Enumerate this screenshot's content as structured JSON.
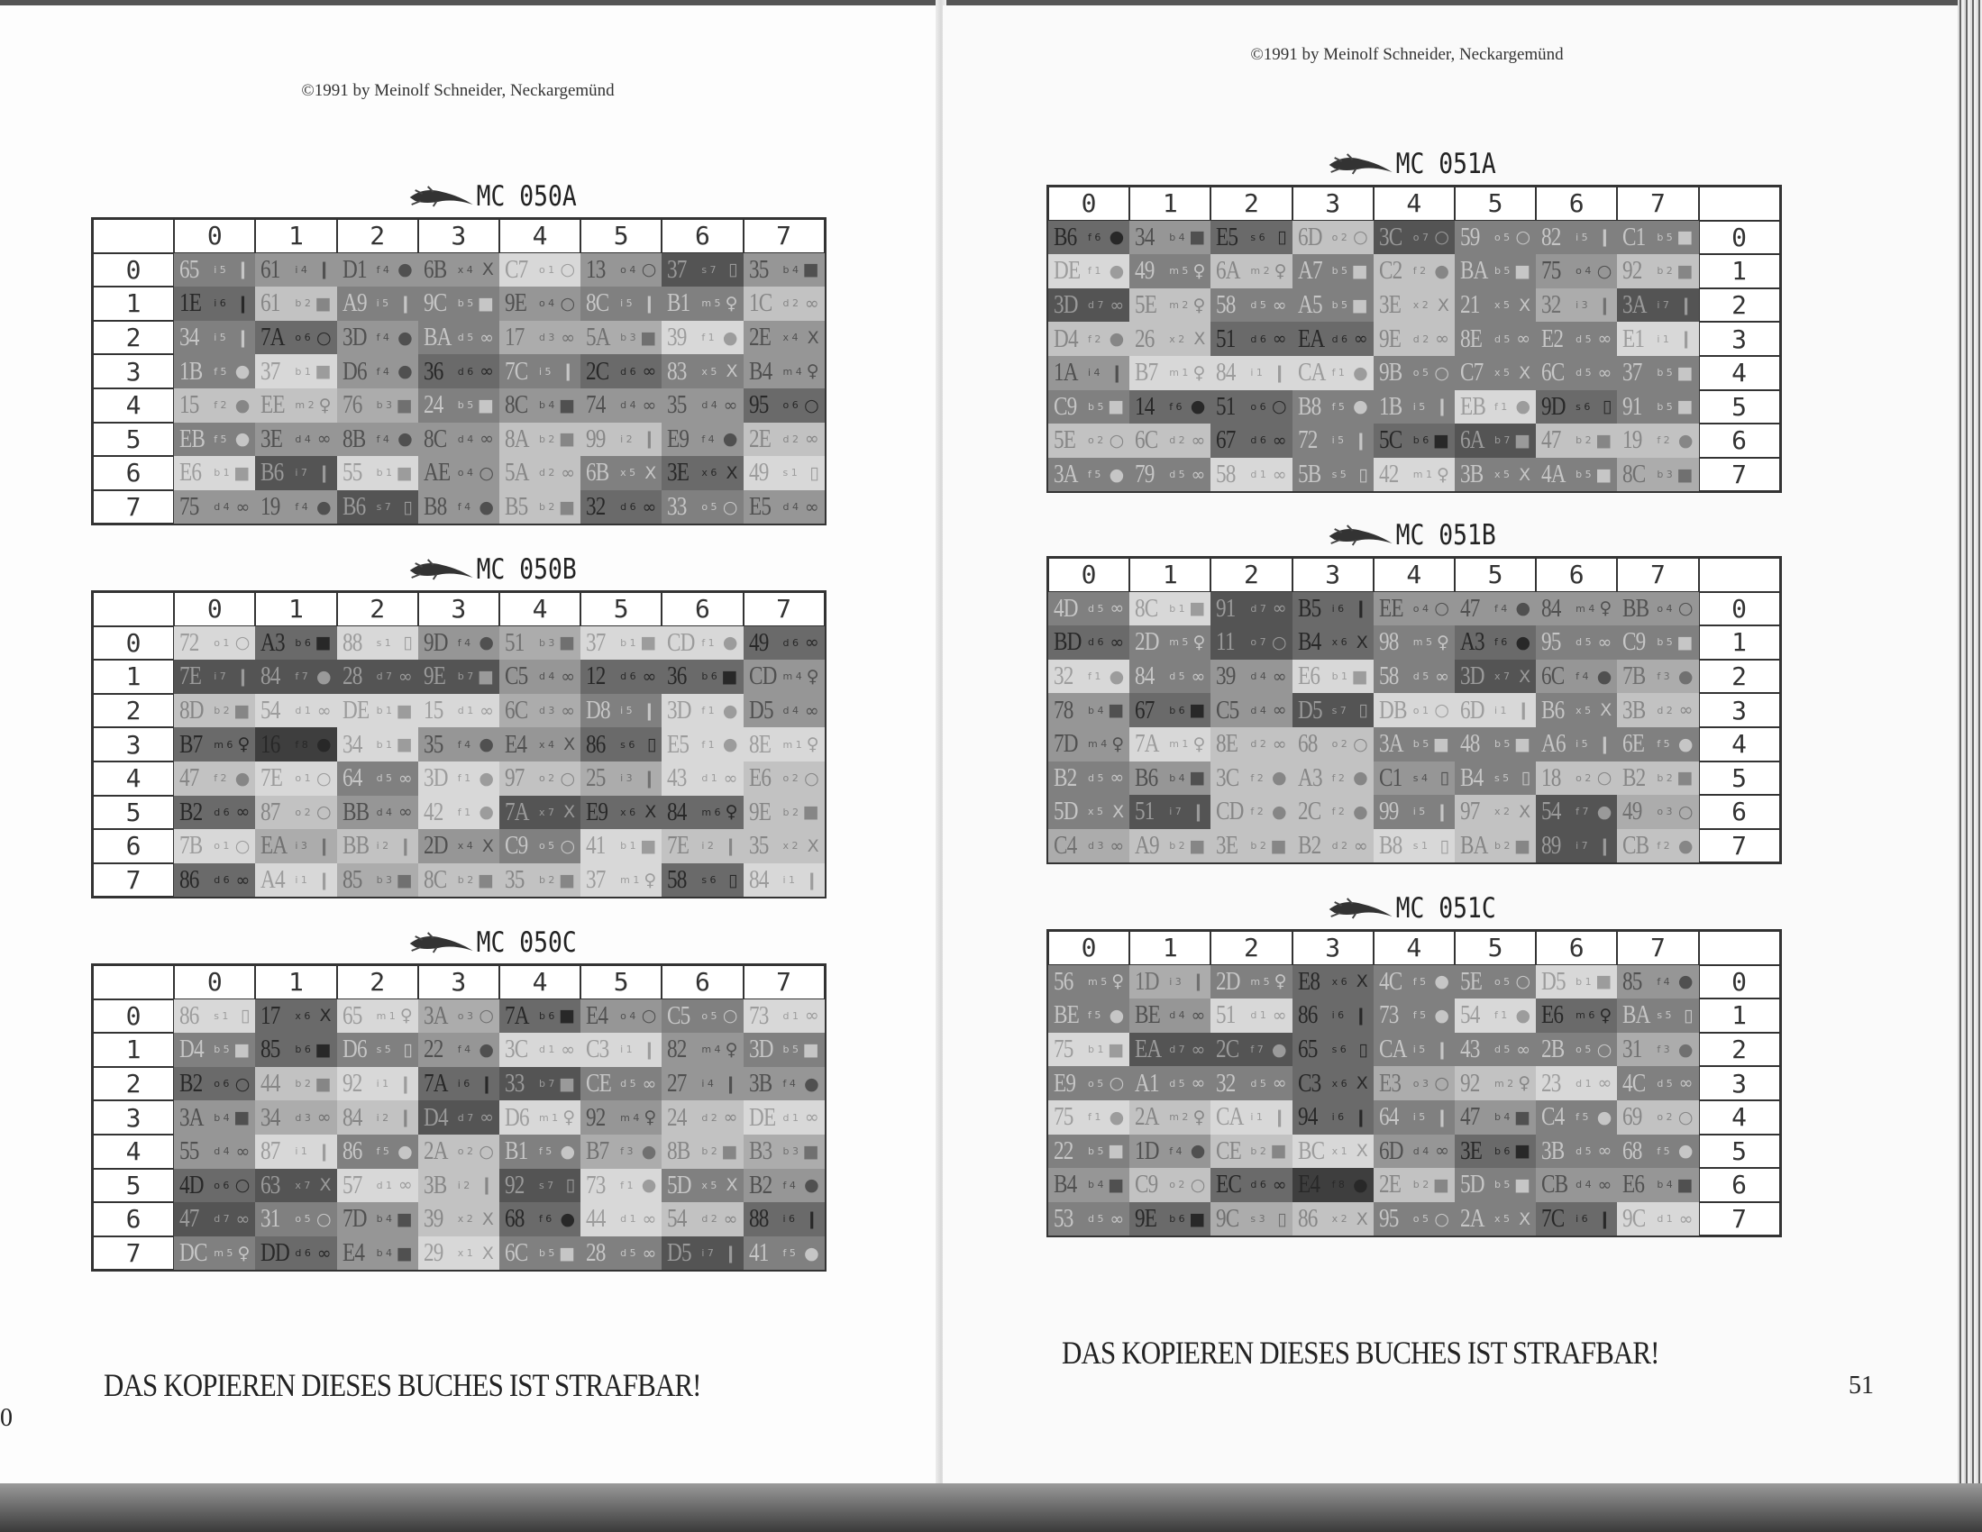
{
  "left_page": {
    "copyright": "©1991 by Meinolf Schneider, Neckargemünd",
    "footer": "DAS KOPIEREN DIESES BUCHES IST STRAFBAR!",
    "page_number": "0"
  },
  "right_page": {
    "copyright": "©1991 by Meinolf Schneider, Neckargemünd",
    "footer": "DAS KOPIEREN DIESES BUCHES IST STRAFBAR!",
    "page_number": "51"
  },
  "icons": {
    "b": "bag-icon",
    "o": "ring-icon",
    "x": "cross-icon",
    "i": "bottle-icon",
    "m": "figure-icon",
    "f": "pear-icon",
    "d": "dumbbell-icon",
    "s": "frame-icon"
  },
  "cell_format": "code icon shade(1=light..8=dark)",
  "tables": [
    {
      "title": "MC 050A",
      "side": "left",
      "col_headers": [
        "0",
        "1",
        "2",
        "3",
        "4",
        "5",
        "6",
        "7"
      ],
      "row_headers": [
        "0",
        "1",
        "2",
        "3",
        "4",
        "5",
        "6",
        "7"
      ],
      "rows": [
        [
          "65 i 5",
          "61 i 4",
          "D1 f 4",
          "6B x 4",
          "C7 o 1",
          "13 o 4",
          "37 s 7",
          "35 b 4"
        ],
        [
          "1E i 6",
          "61 b 2",
          "A9 i 5",
          "9C b 5",
          "9E o 4",
          "8C i 5",
          "B1 m 5",
          "1C d 2"
        ],
        [
          "34 i 5",
          "7A o 6",
          "3D f 4",
          "BA d 5",
          "17 d 3",
          "5A b 3",
          "39 f 1",
          "2E x 4"
        ],
        [
          "1B f 5",
          "37 b 1",
          "D6 f 4",
          "36 d 6",
          "7C i 5",
          "2C d 6",
          "83 x 5",
          "B4 m 4"
        ],
        [
          "15 f 2",
          "EE m 2",
          "76 b 3",
          "24 b 5",
          "8C b 4",
          "74 d 4",
          "35 d 4",
          "95 o 6"
        ],
        [
          "EB f 5",
          "3E d 4",
          "8B f 4",
          "8C d 4",
          "8A b 2",
          "99 i 2",
          "E9 f 4",
          "2E d 2"
        ],
        [
          "E6 b 1",
          "B6 i 7",
          "55 b 1",
          "AE o 4",
          "5A d 2",
          "6B x 5",
          "3E x 6",
          "49 s 1"
        ],
        [
          "75 d 4",
          "19 f 4",
          "B6 s 7",
          "B8 f 4",
          "B5 b 2",
          "32 d 6",
          "33 o 5",
          "E5 d 4"
        ]
      ]
    },
    {
      "title": "MC 050B",
      "side": "left",
      "col_headers": [
        "0",
        "1",
        "2",
        "3",
        "4",
        "5",
        "6",
        "7"
      ],
      "row_headers": [
        "0",
        "1",
        "2",
        "3",
        "4",
        "5",
        "6",
        "7"
      ],
      "rows": [
        [
          "72 o 1",
          "A3 b 6",
          "88 s 1",
          "9D f 4",
          "51 b 3",
          "37 b 1",
          "CD f 1",
          "49 d 6"
        ],
        [
          "7E i 7",
          "84 f 7",
          "28 d 7",
          "9E b 7",
          "C5 d 4",
          "12 d 6",
          "36 b 6",
          "CD m 4"
        ],
        [
          "8D b 2",
          "54 d 1",
          "DE b 1",
          "15 d 1",
          "6C d 3",
          "D8 i 5",
          "3D f 1",
          "D5 d 4"
        ],
        [
          "B7 m 6",
          "16 f 8",
          "34 b 1",
          "35 f 4",
          "E4 x 4",
          "86 s 6",
          "E5 f 1",
          "8E m 1"
        ],
        [
          "47 f 2",
          "7E o 1",
          "64 d 5",
          "3D f 1",
          "97 o 2",
          "25 i 3",
          "43 d 1",
          "E6 o 2"
        ],
        [
          "B2 d 6",
          "87 o 2",
          "BB d 4",
          "42 f 1",
          "7A x 7",
          "E9 x 6",
          "84 m 6",
          "9E b 2"
        ],
        [
          "7B o 1",
          "EA i 3",
          "BB i 2",
          "2D x 4",
          "C9 o 5",
          "41 b 1",
          "7E i 2",
          "35 x 2"
        ],
        [
          "86 d 6",
          "A4 i 1",
          "85 b 3",
          "8C b 2",
          "35 b 2",
          "37 m 1",
          "58 s 6",
          "84 i 1"
        ]
      ]
    },
    {
      "title": "MC 050C",
      "side": "left",
      "col_headers": [
        "0",
        "1",
        "2",
        "3",
        "4",
        "5",
        "6",
        "7"
      ],
      "row_headers": [
        "0",
        "1",
        "2",
        "3",
        "4",
        "5",
        "6",
        "7"
      ],
      "rows": [
        [
          "86 s 1",
          "17 x 6",
          "65 m 1",
          "3A o 3",
          "7A b 6",
          "E4 o 4",
          "C5 o 5",
          "73 d 1"
        ],
        [
          "D4 b 5",
          "85 b 6",
          "D6 s 5",
          "22 f 4",
          "3C d 1",
          "C3 i 1",
          "82 m 4",
          "3D b 5"
        ],
        [
          "B2 o 6",
          "44 b 2",
          "92 i 1",
          "7A i 6",
          "33 b 7",
          "CE d 5",
          "27 i 4",
          "3B f 4"
        ],
        [
          "3A b 4",
          "34 d 3",
          "84 i 2",
          "D4 d 7",
          "D6 m 1",
          "92 m 4",
          "24 d 2",
          "DE d 1"
        ],
        [
          "55 d 4",
          "87 i 1",
          "86 f 5",
          "2A o 2",
          "B1 f 5",
          "B7 f 3",
          "8B b 2",
          "B3 b 3"
        ],
        [
          "4D o 6",
          "63 x 7",
          "57 d 1",
          "3B i 2",
          "92 s 7",
          "73 f 1",
          "5D x 5",
          "B2 f 4"
        ],
        [
          "47 d 7",
          "31 o 5",
          "7D b 4",
          "39 x 2",
          "68 f 6",
          "44 d 1",
          "54 d 2",
          "88 i 6"
        ],
        [
          "DC m 5",
          "DD d 6",
          "E4 b 4",
          "29 x 1",
          "6C b 5",
          "28 d 5",
          "D5 i 7",
          "41 f 5"
        ]
      ]
    },
    {
      "title": "MC 051A",
      "side": "right",
      "col_headers": [
        "0",
        "1",
        "2",
        "3",
        "4",
        "5",
        "6",
        "7"
      ],
      "row_headers": [
        "0",
        "1",
        "2",
        "3",
        "4",
        "5",
        "6",
        "7"
      ],
      "rows": [
        [
          "B6 f 6",
          "34 b 4",
          "E5 s 6",
          "6D o 2",
          "3C o 7",
          "59 o 5",
          "82 i 5",
          "C1 b 5"
        ],
        [
          "DE f 1",
          "49 m 5",
          "6A m 2",
          "A7 b 5",
          "C2 f 2",
          "BA b 5",
          "75 o 4",
          "92 b 2"
        ],
        [
          "3D d 7",
          "5E m 2",
          "58 d 5",
          "A5 b 5",
          "3E x 2",
          "21 x 5",
          "32 i 3",
          "3A i 7"
        ],
        [
          "D4 f 2",
          "26 x 2",
          "51 d 6",
          "EA d 6",
          "9E d 2",
          "8E d 5",
          "E2 d 5",
          "E1 i 1"
        ],
        [
          "1A i 4",
          "B7 m 1",
          "84 i 1",
          "CA f 1",
          "9B o 5",
          "C7 x 5",
          "6C d 5",
          "37 b 5"
        ],
        [
          "C9 b 5",
          "14 f 6",
          "51 o 6",
          "B8 f 5",
          "1B i 5",
          "EB f 1",
          "9D s 6",
          "91 b 5"
        ],
        [
          "5E o 2",
          "6C d 2",
          "67 d 6",
          "72 i 5",
          "5C b 6",
          "6A b 7",
          "47 b 2",
          "19 f 2"
        ],
        [
          "3A f 5",
          "79 d 5",
          "58 d 1",
          "5B s 5",
          "42 m 1",
          "3B x 5",
          "4A b 5",
          "8C b 3"
        ]
      ]
    },
    {
      "title": "MC 051B",
      "side": "right",
      "col_headers": [
        "0",
        "1",
        "2",
        "3",
        "4",
        "5",
        "6",
        "7"
      ],
      "row_headers": [
        "0",
        "1",
        "2",
        "3",
        "4",
        "5",
        "6",
        "7"
      ],
      "rows": [
        [
          "4D d 5",
          "8C b 1",
          "91 d 7",
          "B5 i 6",
          "EE o 4",
          "47 f 4",
          "84 m 4",
          "BB o 4"
        ],
        [
          "BD d 6",
          "2D m 5",
          "11 o 7",
          "B4 x 6",
          "98 m 5",
          "A3 f 6",
          "95 d 5",
          "C9 b 5"
        ],
        [
          "32 f 1",
          "84 d 5",
          "39 d 4",
          "E6 b 1",
          "58 d 5",
          "3D x 7",
          "6C f 4",
          "7B f 3"
        ],
        [
          "78 b 4",
          "67 b 6",
          "C5 d 4",
          "D5 s 7",
          "DB o 1",
          "6D i 1",
          "B6 x 5",
          "3B d 2"
        ],
        [
          "7D m 4",
          "7A m 1",
          "8E d 2",
          "68 o 2",
          "3A b 5",
          "48 b 5",
          "A6 i 5",
          "6E f 5"
        ],
        [
          "B2 d 5",
          "B6 b 4",
          "3C f 2",
          "A3 f 2",
          "C1 s 4",
          "B4 s 5",
          "18 o 2",
          "B2 b 2"
        ],
        [
          "5D x 5",
          "51 i 7",
          "CD f 2",
          "2C f 2",
          "99 i 5",
          "97 x 2",
          "54 f 7",
          "49 o 3"
        ],
        [
          "C4 d 3",
          "A9 b 2",
          "3E b 2",
          "B2 d 2",
          "B8 s 1",
          "BA b 2",
          "89 i 7",
          "CB f 2"
        ]
      ]
    },
    {
      "title": "MC 051C",
      "side": "right",
      "col_headers": [
        "0",
        "1",
        "2",
        "3",
        "4",
        "5",
        "6",
        "7"
      ],
      "row_headers": [
        "0",
        "1",
        "2",
        "3",
        "4",
        "5",
        "6",
        "7"
      ],
      "rows": [
        [
          "56 m 5",
          "1D i 3",
          "2D m 5",
          "E8 x 6",
          "4C f 5",
          "5E o 5",
          "D5 b 1",
          "85 f 4"
        ],
        [
          "BE f 5",
          "BE d 4",
          "51 d 1",
          "86 i 6",
          "73 f 5",
          "54 f 1",
          "E6 m 6",
          "BA s 5"
        ],
        [
          "75 b 1",
          "EA d 7",
          "2C f 7",
          "65 s 6",
          "CA i 5",
          "43 d 5",
          "2B o 5",
          "31 f 3"
        ],
        [
          "E9 o 5",
          "A1 d 5",
          "32 d 5",
          "C3 x 6",
          "E3 o 3",
          "92 m 2",
          "23 d 1",
          "4C d 5"
        ],
        [
          "75 f 1",
          "2A m 2",
          "CA i 1",
          "94 i 6",
          "64 i 5",
          "47 b 4",
          "C4 f 5",
          "69 o 2"
        ],
        [
          "22 b 5",
          "1D f 4",
          "CE b 2",
          "BC x 1",
          "6D d 4",
          "3E b 6",
          "3B d 5",
          "68 f 5"
        ],
        [
          "B4 b 4",
          "C9 o 2",
          "EC d 6",
          "E4 f 8",
          "2E b 2",
          "5D b 5",
          "CB d 4",
          "E6 b 4"
        ],
        [
          "53 d 5",
          "9E b 6",
          "9C s 3",
          "86 x 2",
          "95 o 5",
          "2A x 5",
          "7C i 6",
          "9C d 1"
        ]
      ]
    }
  ]
}
